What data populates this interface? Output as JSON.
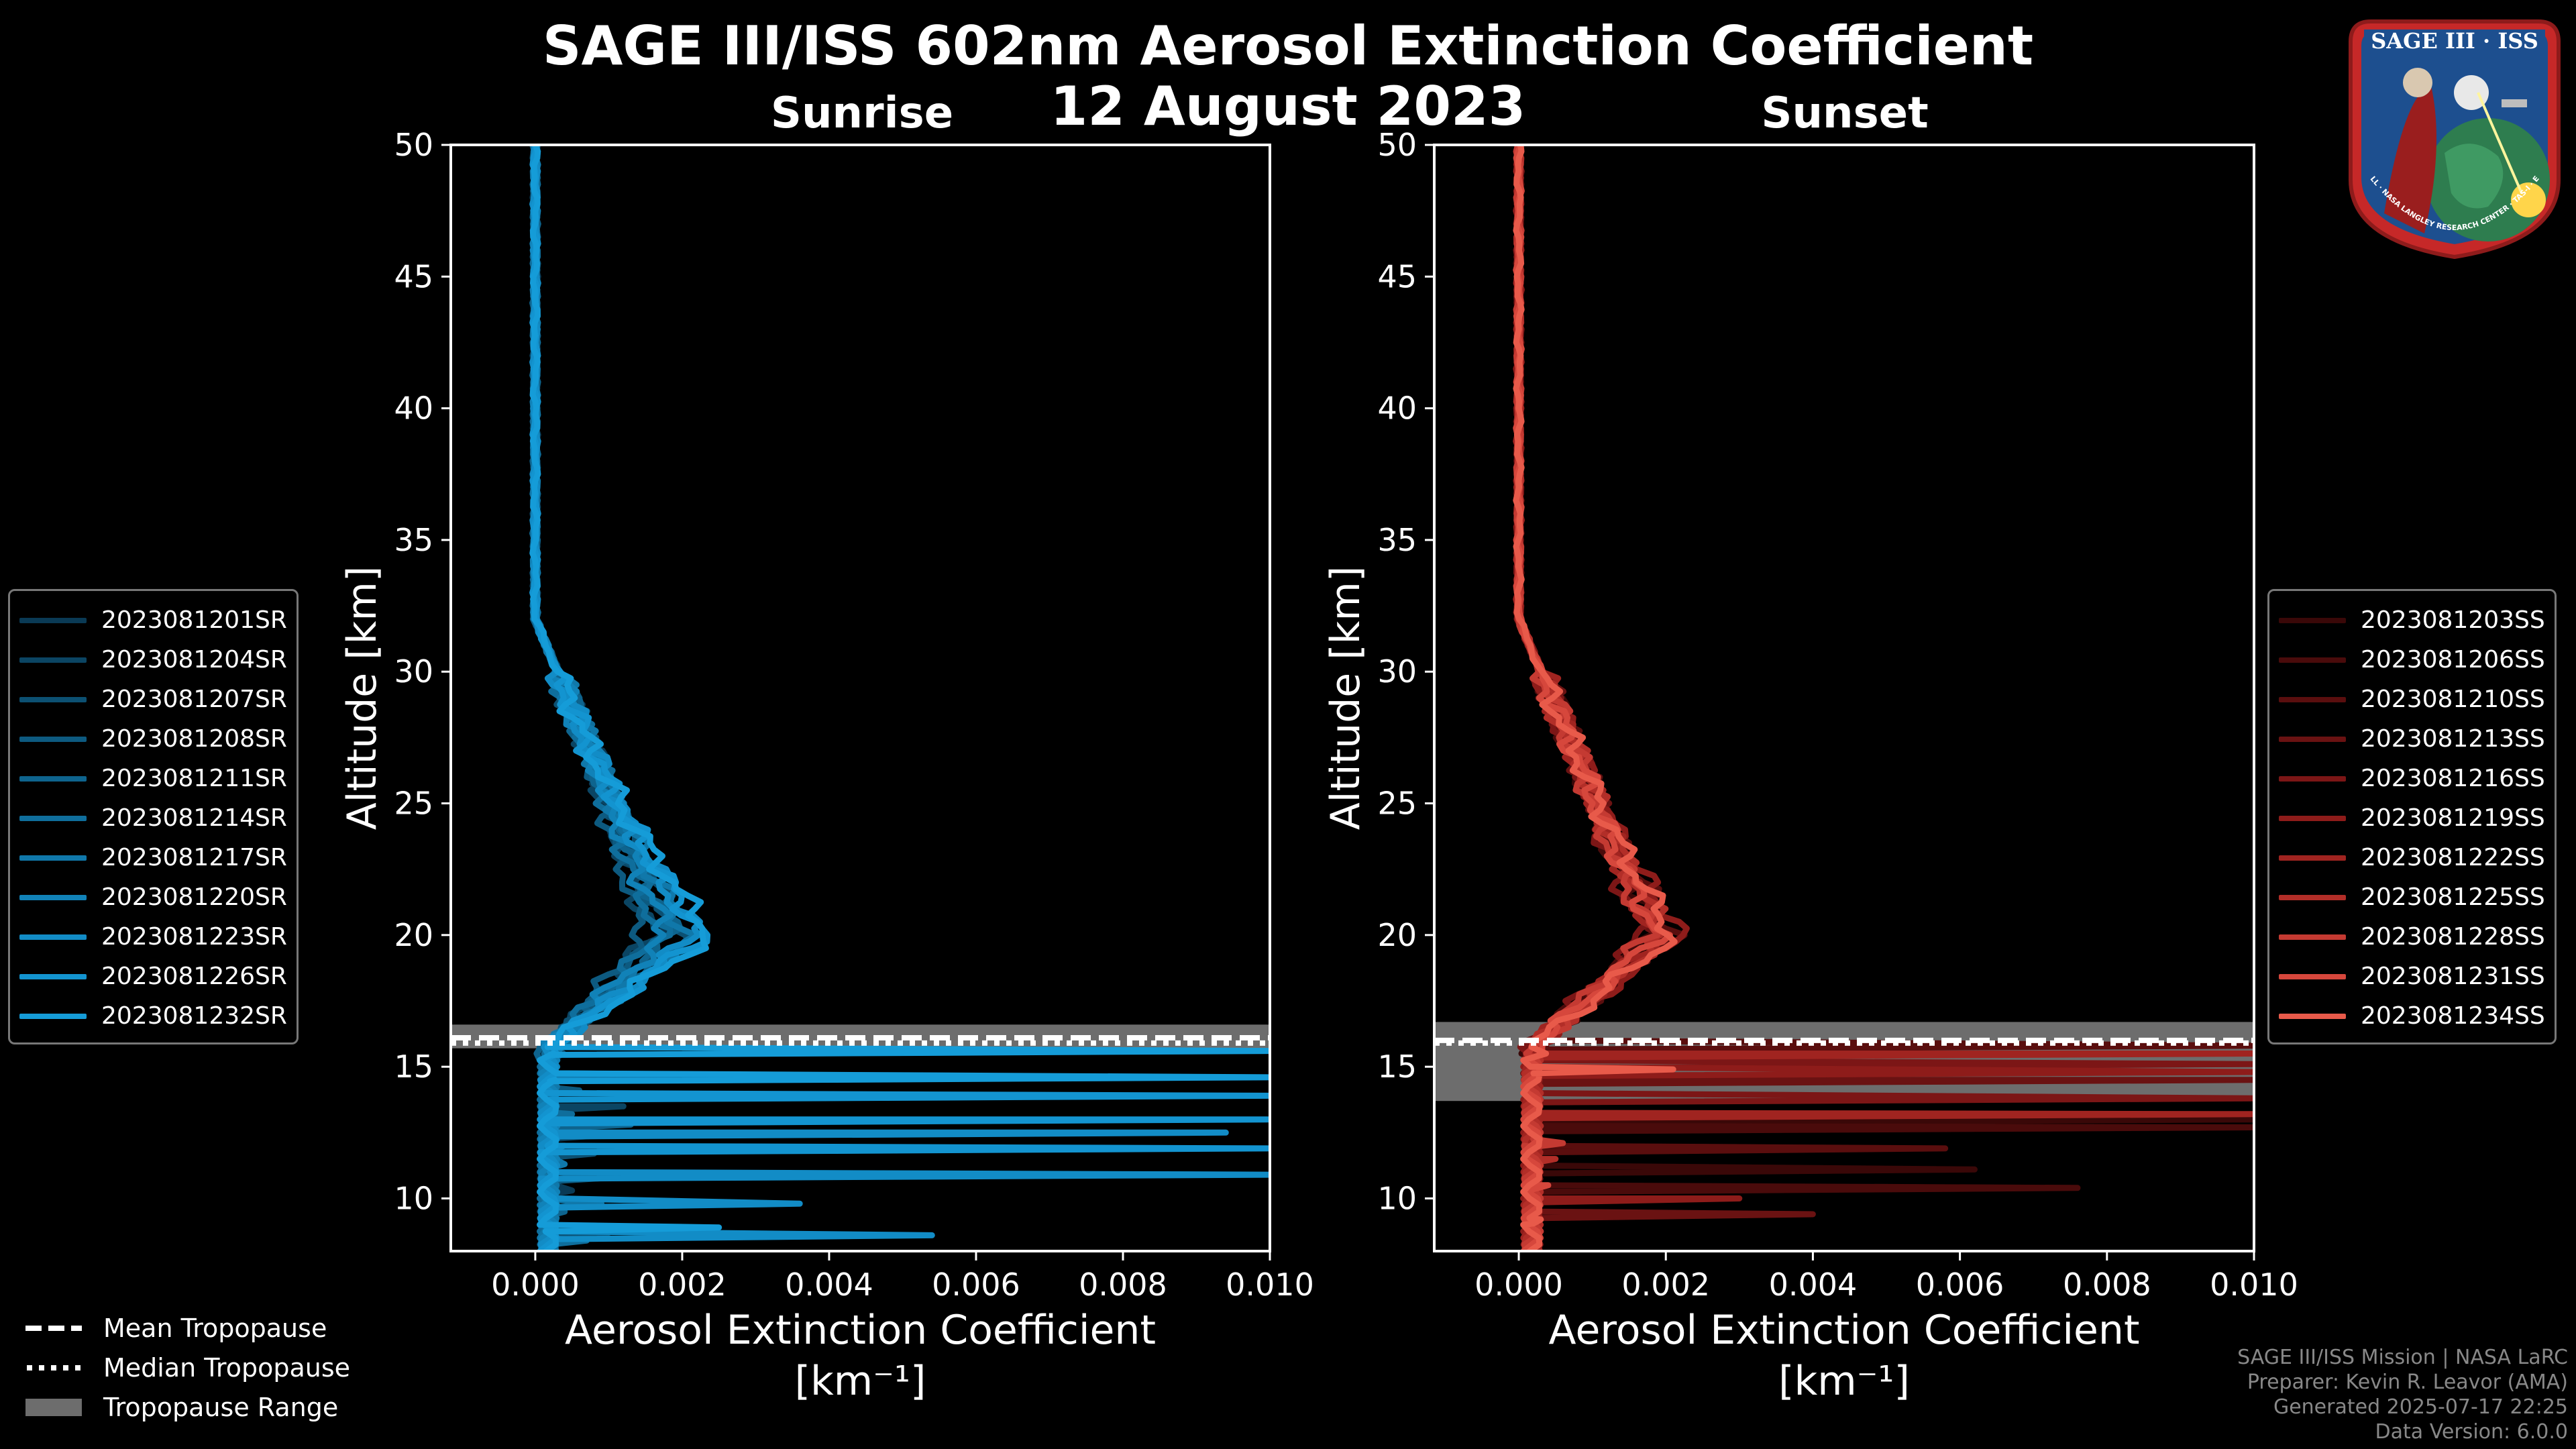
{
  "title": "SAGE III/ISS 602nm Aerosol Extinction Coefficient",
  "date": "12 August 2023",
  "logo": {
    "text": "SAGE III · ISS",
    "ring_text": "BALL · NASA LANGLEY RESEARCH CENTER · TAS-I · ESA"
  },
  "legend_tropopause": [
    {
      "label": "Mean Tropopause",
      "style": "dashed"
    },
    {
      "label": "Median Tropopause",
      "style": "dotted"
    },
    {
      "label": "Tropopause Range",
      "style": "band"
    }
  ],
  "footer": [
    "SAGE III/ISS Mission | NASA LaRC",
    "Preparer: Kevin R. Leavor (AMA)",
    "Generated 2025-07-17 22:25",
    "Data Version: 6.0.0"
  ],
  "chart_data": [
    {
      "type": "line",
      "title": "Sunrise",
      "xlabel": "Aerosol Extinction Coefficient",
      "xlabel_units": "[km⁻¹]",
      "ylabel": "Altitude [km]",
      "xlim": [
        -0.00115,
        0.01
      ],
      "ylim": [
        8,
        50
      ],
      "xticks": [
        0.0,
        0.002,
        0.004,
        0.006,
        0.008,
        0.01
      ],
      "xtick_labels": [
        "0.000",
        "0.002",
        "0.004",
        "0.006",
        "0.008",
        "0.010"
      ],
      "yticks": [
        10,
        15,
        20,
        25,
        30,
        35,
        40,
        45,
        50
      ],
      "tropopause": {
        "mean": 16.1,
        "median": 15.9,
        "range": [
          15.7,
          16.6
        ]
      },
      "color_scheme": "blue",
      "series": [
        {
          "name": "2023081201SR",
          "color": "#0a3a55",
          "peak": 0.0018,
          "low": [
            [
              12.5,
              0.0009
            ],
            [
              10.4,
              0.0005
            ]
          ]
        },
        {
          "name": "2023081204SR",
          "color": "#0b4563",
          "peak": 0.0016,
          "low": [
            [
              13.6,
              0.0012
            ],
            [
              9.2,
              0.0002
            ]
          ]
        },
        {
          "name": "2023081207SR",
          "color": "#0c5072",
          "peak": 0.002,
          "low": [
            [
              11.8,
              0.0008
            ],
            [
              8.8,
              0.001
            ]
          ]
        },
        {
          "name": "2023081208SR",
          "color": "#0d5a80",
          "peak": 0.0015,
          "low": [
            [
              14.2,
              0.0006
            ],
            [
              10.9,
              0.0011
            ]
          ]
        },
        {
          "name": "2023081211SR",
          "color": "#0e648e",
          "peak": 0.0019,
          "low": [
            [
              12.9,
              0.0013
            ],
            [
              9.6,
              0.0004
            ]
          ]
        },
        {
          "name": "2023081214SR",
          "color": "#0f6e9c",
          "peak": 0.0017,
          "low": [
            [
              13.3,
              0.0005
            ],
            [
              8.5,
              0.0007
            ]
          ]
        },
        {
          "name": "2023081217SR",
          "color": "#1078aa",
          "peak": 0.0021,
          "low": [
            [
              11.4,
              0.0004
            ],
            [
              9.9,
              0.0009
            ]
          ]
        },
        {
          "name": "2023081220SR",
          "color": "#1182b8",
          "peak": 0.0018,
          "low": [
            [
              14.8,
              0.0028
            ],
            [
              12.1,
              0.0004
            ]
          ]
        },
        {
          "name": "2023081223SR",
          "color": "#128cc6",
          "peak": 0.0022,
          "low": [
            [
              12.6,
              0.0094
            ],
            [
              11.0,
              0.01
            ],
            [
              9.9,
              0.0036
            ],
            [
              8.7,
              0.0054
            ]
          ]
        },
        {
          "name": "2023081226SR",
          "color": "#1394d0",
          "peak": 0.0023,
          "low": [
            [
              14.0,
              0.01
            ],
            [
              13.1,
              0.01
            ],
            [
              12.0,
              0.01
            ]
          ]
        },
        {
          "name": "2023081232SR",
          "color": "#159cd8",
          "peak": 0.0024,
          "low": [
            [
              15.7,
              0.01
            ],
            [
              14.7,
              0.01
            ],
            [
              9.0,
              0.0025
            ]
          ]
        }
      ]
    },
    {
      "type": "line",
      "title": "Sunset",
      "xlabel": "Aerosol Extinction Coefficient",
      "xlabel_units": "[km⁻¹]",
      "ylabel": "Altitude [km]",
      "xlim": [
        -0.00115,
        0.01
      ],
      "ylim": [
        8,
        50
      ],
      "xticks": [
        0.0,
        0.002,
        0.004,
        0.006,
        0.008,
        0.01
      ],
      "xtick_labels": [
        "0.000",
        "0.002",
        "0.004",
        "0.006",
        "0.008",
        "0.010"
      ],
      "yticks": [
        10,
        15,
        20,
        25,
        30,
        35,
        40,
        45,
        50
      ],
      "tropopause": {
        "mean": 16.0,
        "median": 15.9,
        "range": [
          13.7,
          16.7
        ]
      },
      "color_scheme": "red",
      "series": [
        {
          "name": "2023081203SS",
          "color": "#3a0808",
          "peak": 0.0019,
          "low": [
            [
              13.1,
              0.01
            ],
            [
              11.2,
              0.0062
            ]
          ]
        },
        {
          "name": "2023081206SS",
          "color": "#4a0b0b",
          "peak": 0.0018,
          "low": [
            [
              12.8,
              0.01
            ],
            [
              10.5,
              0.0076
            ]
          ]
        },
        {
          "name": "2023081210SS",
          "color": "#5a0e0e",
          "peak": 0.0021,
          "low": [
            [
              15.9,
              0.01
            ],
            [
              12.0,
              0.0058
            ]
          ]
        },
        {
          "name": "2023081213SS",
          "color": "#6a1212",
          "peak": 0.002,
          "low": [
            [
              14.6,
              0.01
            ],
            [
              9.5,
              0.004
            ]
          ]
        },
        {
          "name": "2023081216SS",
          "color": "#7c1616",
          "peak": 0.0017,
          "low": [
            [
              15.2,
              0.01
            ],
            [
              13.9,
              0.01
            ]
          ]
        },
        {
          "name": "2023081219SS",
          "color": "#8e1c1a",
          "peak": 0.0022,
          "low": [
            [
              14.9,
              0.01
            ],
            [
              10.1,
              0.003
            ]
          ]
        },
        {
          "name": "2023081222SS",
          "color": "#a02420",
          "peak": 0.0019,
          "low": [
            [
              15.6,
              0.01
            ],
            [
              13.3,
              0.01
            ]
          ]
        },
        {
          "name": "2023081225SS",
          "color": "#b22e28",
          "peak": 0.002,
          "low": [
            [
              11.6,
              0.0005
            ]
          ]
        },
        {
          "name": "2023081228SS",
          "color": "#c43a32",
          "peak": 0.0018,
          "low": [
            [
              12.2,
              0.0006
            ]
          ]
        },
        {
          "name": "2023081231SS",
          "color": "#d6473c",
          "peak": 0.0019,
          "low": [
            [
              10.6,
              0.0004
            ]
          ]
        },
        {
          "name": "2023081234SS",
          "color": "#e85a4a",
          "peak": 0.0021,
          "low": [
            [
              15.0,
              0.0021
            ],
            [
              9.3,
              0.0003
            ]
          ]
        }
      ]
    }
  ]
}
